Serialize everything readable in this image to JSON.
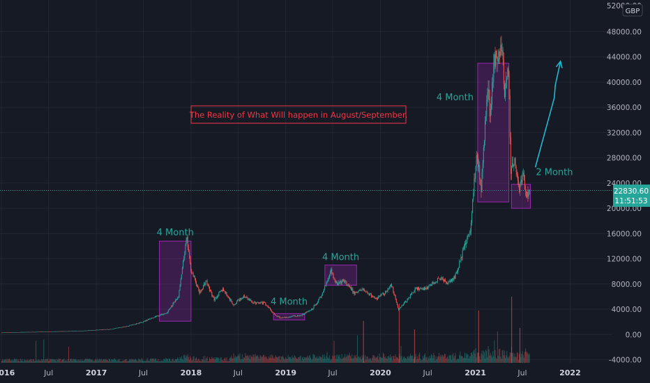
{
  "colors": {
    "background": "#161a25",
    "grid": "#222633",
    "up": "#26a69a",
    "down": "#ef5350",
    "box": "#9c27b0",
    "annotation": "#f23645",
    "arrow": "#22b8cf",
    "axis_text": "#b2b5be"
  },
  "header": {
    "currency": "GBP"
  },
  "annotation": {
    "title": "The Reality of What Will happen in August/September."
  },
  "last_price": {
    "value": "22830.60",
    "countdown": "11:51:53"
  },
  "chart_data": {
    "type": "candlestick",
    "title": "",
    "xlabel": "",
    "ylabel": "",
    "currency": "GBP",
    "y_tick_labels": [
      "48000.00",
      "44000.00",
      "40000.00",
      "36000.00",
      "32000.00",
      "28000.00",
      "24000.00",
      "20000.00",
      "16000.00",
      "12000.00",
      "8000.00",
      "4000.00",
      "0.00",
      "-4000.00"
    ],
    "y_top_partial_label": "52000.00",
    "x_tick_labels": [
      "2016",
      "Jul",
      "2017",
      "Jul",
      "2018",
      "Jul",
      "2019",
      "Jul",
      "2020",
      "Jul",
      "2021",
      "Jul",
      "2022"
    ],
    "ylim": [
      -4000,
      52000
    ],
    "grid": true,
    "price_path": [
      [
        "2016-01-01",
        300
      ],
      [
        "2016-07-01",
        450
      ],
      [
        "2016-11-01",
        550
      ],
      [
        "2017-01-01",
        700
      ],
      [
        "2017-03-01",
        850
      ],
      [
        "2017-05-01",
        1300
      ],
      [
        "2017-07-01",
        2000
      ],
      [
        "2017-08-15",
        2800
      ],
      [
        "2017-10-01",
        3400
      ],
      [
        "2017-11-15",
        6000
      ],
      [
        "2017-12-17",
        15300
      ],
      [
        "2018-01-01",
        10500
      ],
      [
        "2018-02-05",
        6500
      ],
      [
        "2018-03-01",
        8500
      ],
      [
        "2018-04-01",
        5500
      ],
      [
        "2018-05-05",
        7200
      ],
      [
        "2018-06-15",
        4700
      ],
      [
        "2018-07-25",
        6100
      ],
      [
        "2018-09-01",
        5000
      ],
      [
        "2018-10-15",
        4900
      ],
      [
        "2018-11-25",
        3000
      ],
      [
        "2018-12-15",
        2600
      ],
      [
        "2019-01-15",
        2800
      ],
      [
        "2019-03-01",
        3000
      ],
      [
        "2019-04-15",
        4000
      ],
      [
        "2019-05-25",
        6500
      ],
      [
        "2019-06-26",
        10200
      ],
      [
        "2019-07-15",
        8000
      ],
      [
        "2019-08-15",
        8500
      ],
      [
        "2019-09-25",
        6500
      ],
      [
        "2019-10-25",
        7200
      ],
      [
        "2019-12-15",
        5600
      ],
      [
        "2020-01-20",
        6600
      ],
      [
        "2020-02-15",
        7800
      ],
      [
        "2020-03-12",
        3900
      ],
      [
        "2020-04-15",
        5500
      ],
      [
        "2020-05-15",
        7200
      ],
      [
        "2020-07-01",
        7300
      ],
      [
        "2020-08-15",
        9000
      ],
      [
        "2020-09-15",
        8200
      ],
      [
        "2020-10-15",
        9000
      ],
      [
        "2020-11-15",
        13000
      ],
      [
        "2020-12-15",
        17000
      ],
      [
        "2021-01-08",
        29000
      ],
      [
        "2021-01-25",
        23000
      ],
      [
        "2021-02-20",
        40000
      ],
      [
        "2021-03-01",
        34000
      ],
      [
        "2021-03-15",
        43000
      ],
      [
        "2021-04-14",
        46500
      ],
      [
        "2021-04-25",
        37000
      ],
      [
        "2021-05-10",
        42000
      ],
      [
        "2021-05-19",
        26000
      ],
      [
        "2021-06-01",
        27500
      ],
      [
        "2021-06-22",
        23000
      ],
      [
        "2021-07-05",
        25000
      ],
      [
        "2021-07-20",
        22000
      ],
      [
        "2021-07-28",
        22830
      ]
    ],
    "boxes": [
      {
        "label": "4 Month",
        "start": "2017-09-01",
        "end": "2018-01-01",
        "low": 2100,
        "high": 14800
      },
      {
        "label": "4 Month",
        "start": "2018-11-15",
        "end": "2019-03-15",
        "low": 2300,
        "high": 3300
      },
      {
        "label": "4 Month",
        "start": "2019-06-01",
        "end": "2019-10-01",
        "low": 7800,
        "high": 11000
      },
      {
        "label": "4 Month",
        "start": "2021-01-10",
        "end": "2021-05-10",
        "low": 21000,
        "high": 43000
      },
      {
        "label": "2 Month",
        "start": "2021-05-20",
        "end": "2021-08-01",
        "low": 20000,
        "high": 23800
      }
    ],
    "arrow_path": [
      [
        "2021-08-20",
        26500
      ],
      [
        "2021-11-01",
        37500
      ],
      [
        "2021-11-05",
        39500
      ],
      [
        "2021-11-25",
        43300
      ]
    ],
    "last_price": 22830.6
  }
}
